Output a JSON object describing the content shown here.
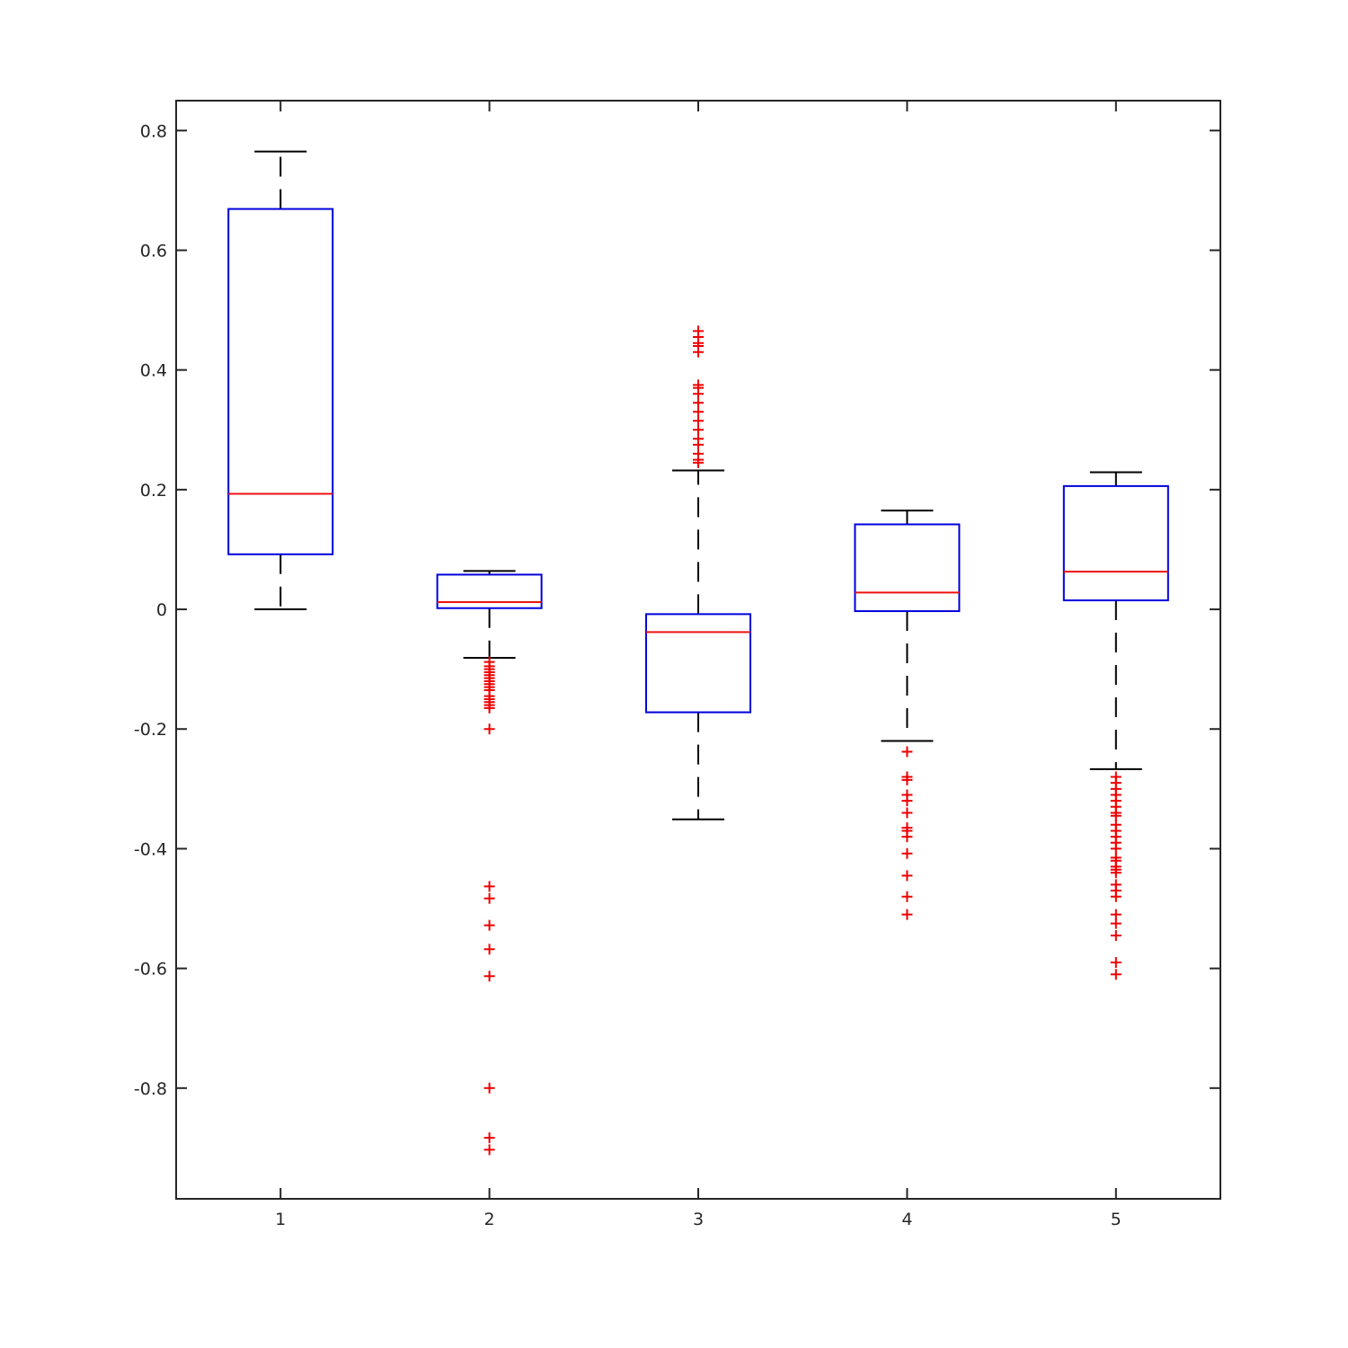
{
  "chart_data": {
    "type": "box",
    "categories": [
      "1",
      "2",
      "3",
      "4",
      "5"
    ],
    "ylim": [
      -0.985,
      0.85
    ],
    "yticks": [
      0.8,
      0.6,
      0.4,
      0.2,
      0,
      -0.2,
      -0.4,
      -0.6,
      -0.8
    ],
    "ytick_labels": [
      "0.8",
      "0.6",
      "0.4",
      "0.2",
      "0",
      "-0.2",
      "-0.4",
      "-0.6",
      "-0.8"
    ],
    "grid": false,
    "colors": {
      "box": "#0000dd",
      "median": "#ee1111",
      "whisker": "#000000",
      "outlier": "#ee0000",
      "axis": "#262626"
    },
    "boxes": [
      {
        "label": "1",
        "whisker_low": 0.0,
        "q1": 0.092,
        "median": 0.193,
        "q3": 0.669,
        "whisker_high": 0.765,
        "outliers": []
      },
      {
        "label": "2",
        "whisker_low": -0.081,
        "q1": 0.002,
        "median": 0.012,
        "q3": 0.058,
        "whisker_high": 0.064,
        "outliers": [
          -0.088,
          -0.095,
          -0.1,
          -0.105,
          -0.11,
          -0.115,
          -0.12,
          -0.125,
          -0.13,
          -0.135,
          -0.145,
          -0.15,
          -0.155,
          -0.16,
          -0.165,
          -0.2,
          -0.463,
          -0.483,
          -0.528,
          -0.568,
          -0.613,
          -0.8,
          -0.883,
          -0.903
        ]
      },
      {
        "label": "3",
        "whisker_low": -0.351,
        "q1": -0.172,
        "median": -0.038,
        "q3": -0.008,
        "whisker_high": 0.232,
        "outliers": [
          0.245,
          0.25,
          0.26,
          0.275,
          0.285,
          0.3,
          0.315,
          0.33,
          0.345,
          0.36,
          0.37,
          0.375,
          0.43,
          0.44,
          0.445,
          0.455,
          0.465
        ]
      },
      {
        "label": "4",
        "whisker_low": -0.22,
        "q1": -0.003,
        "median": 0.028,
        "q3": 0.142,
        "whisker_high": 0.165,
        "outliers": [
          -0.238,
          -0.28,
          -0.285,
          -0.31,
          -0.32,
          -0.34,
          -0.365,
          -0.37,
          -0.38,
          -0.408,
          -0.445,
          -0.48,
          -0.51
        ]
      },
      {
        "label": "5",
        "whisker_low": -0.267,
        "q1": 0.015,
        "median": 0.063,
        "q3": 0.206,
        "whisker_high": 0.229,
        "outliers": [
          -0.28,
          -0.29,
          -0.3,
          -0.31,
          -0.32,
          -0.33,
          -0.34,
          -0.345,
          -0.36,
          -0.37,
          -0.38,
          -0.39,
          -0.4,
          -0.415,
          -0.42,
          -0.43,
          -0.435,
          -0.44,
          -0.46,
          -0.47,
          -0.48,
          -0.51,
          -0.525,
          -0.545,
          -0.59,
          -0.61
        ]
      }
    ]
  }
}
